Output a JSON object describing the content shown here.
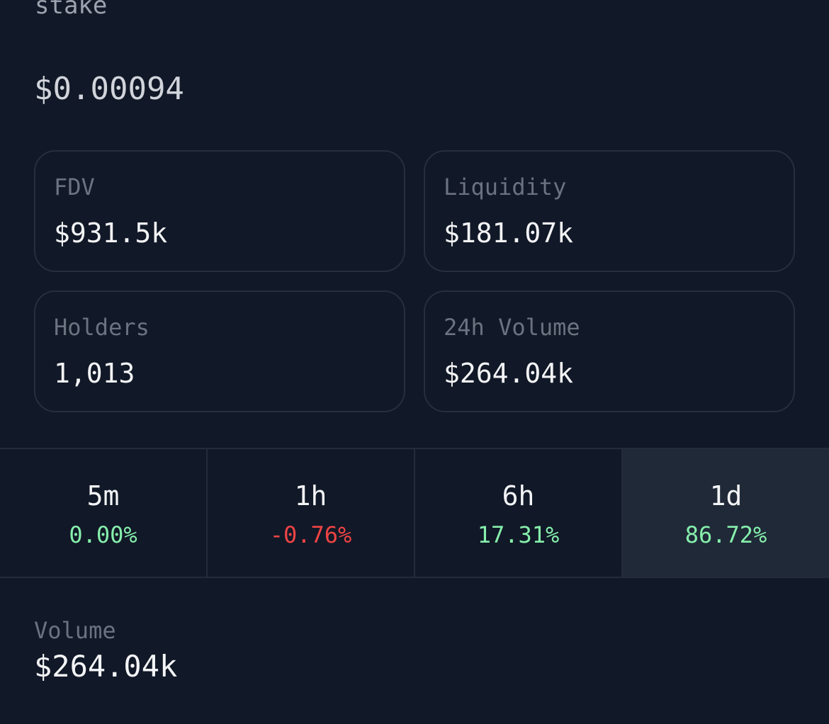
{
  "token": {
    "name": "stake",
    "price": "$0.00094"
  },
  "stats": [
    {
      "label": "FDV",
      "value": "$931.5k"
    },
    {
      "label": "Liquidity",
      "value": "$181.07k"
    },
    {
      "label": "Holders",
      "value": "1,013"
    },
    {
      "label": "24h Volume",
      "value": "$264.04k"
    }
  ],
  "timeframes": [
    {
      "label": "5m",
      "change": "0.00%",
      "direction": "up",
      "active": false
    },
    {
      "label": "1h",
      "change": "-0.76%",
      "direction": "down",
      "active": false
    },
    {
      "label": "6h",
      "change": "17.31%",
      "direction": "up",
      "active": false
    },
    {
      "label": "1d",
      "change": "86.72%",
      "direction": "up",
      "active": true
    }
  ],
  "volume": {
    "label": "Volume",
    "value": "$264.04k"
  },
  "colors": {
    "background": "#111827",
    "card_border": "#262f3d",
    "active_tab": "#1f2937",
    "positive": "#86efac",
    "negative": "#ef4444",
    "muted_text": "#6b7280"
  }
}
